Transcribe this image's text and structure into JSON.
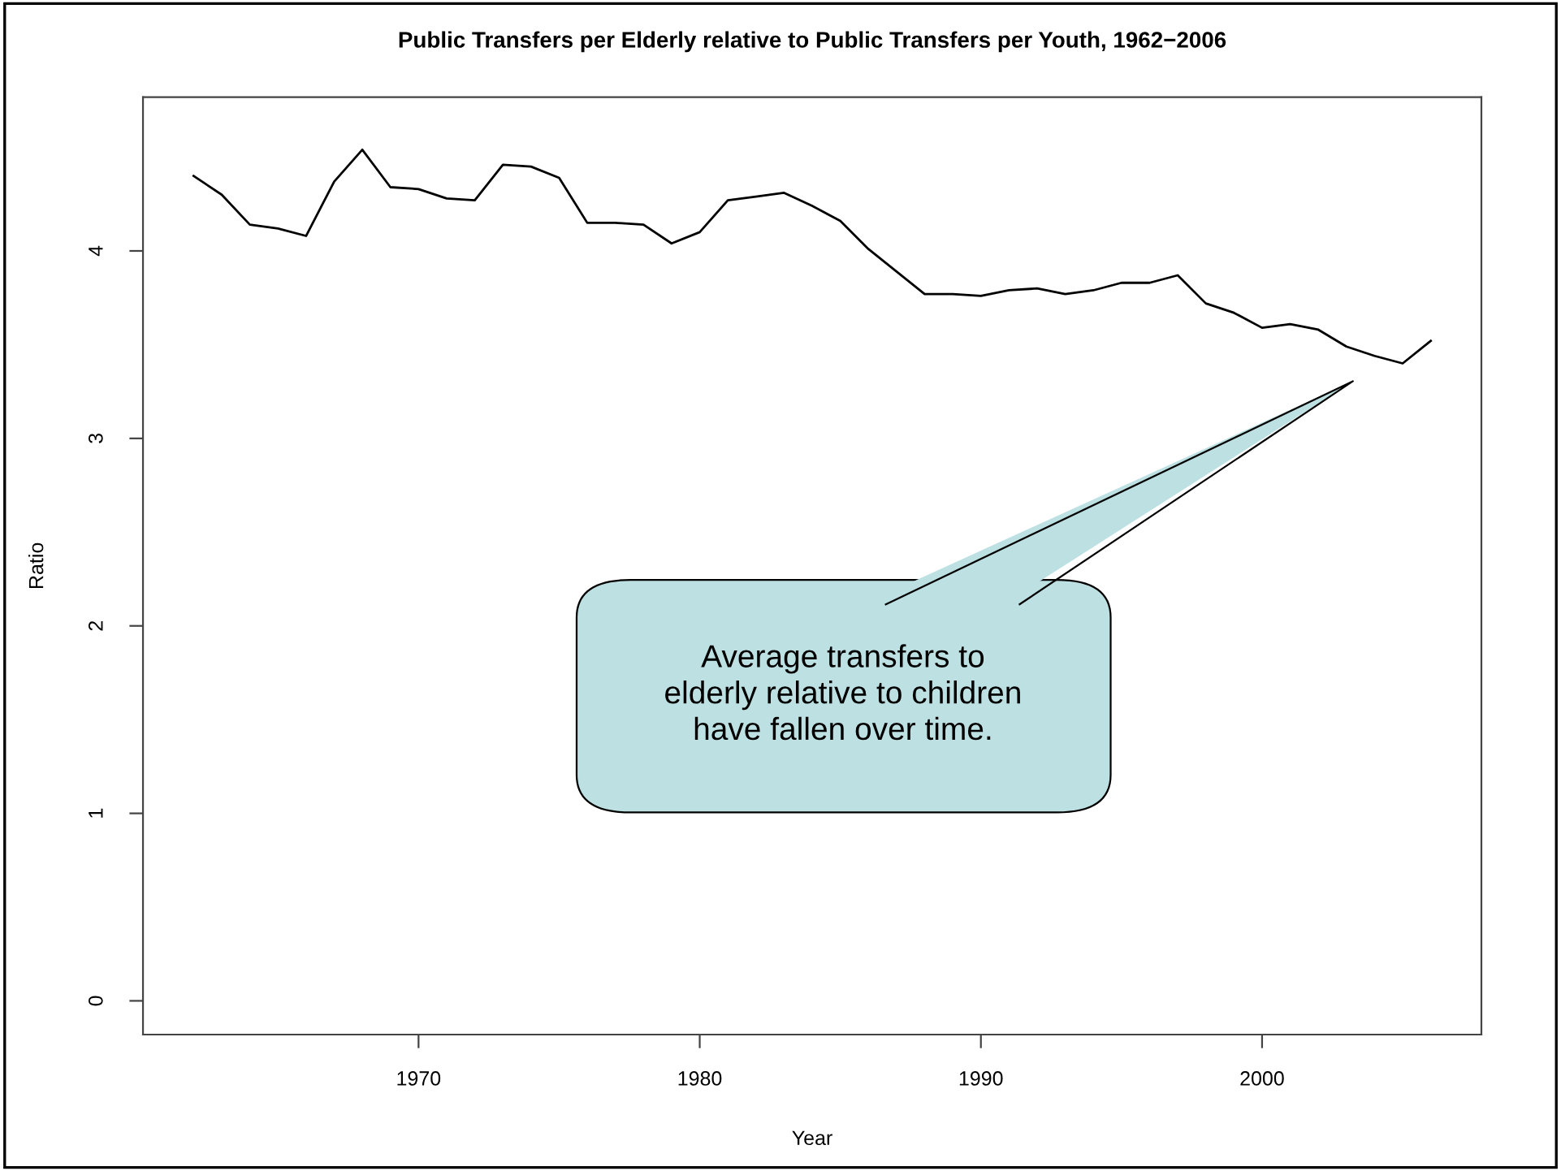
{
  "chart_data": {
    "type": "line",
    "title": "Public Transfers per Elderly relative to Public Transfers per Youth, 1962−2006",
    "xlabel": "Year",
    "ylabel": "Ratio",
    "x": [
      1962,
      1963,
      1964,
      1965,
      1966,
      1967,
      1968,
      1969,
      1970,
      1971,
      1972,
      1973,
      1974,
      1975,
      1976,
      1977,
      1978,
      1979,
      1980,
      1981,
      1982,
      1983,
      1984,
      1985,
      1986,
      1987,
      1988,
      1989,
      1990,
      1991,
      1992,
      1993,
      1994,
      1995,
      1996,
      1997,
      1998,
      1999,
      2000,
      2001,
      2002,
      2003,
      2004,
      2005,
      2006
    ],
    "series": [
      {
        "color": "#000000",
        "values": [
          4.4,
          4.3,
          4.14,
          4.12,
          4.08,
          4.37,
          4.54,
          4.34,
          4.33,
          4.28,
          4.27,
          4.46,
          4.45,
          4.39,
          4.15,
          4.15,
          4.14,
          4.04,
          4.1,
          4.27,
          4.29,
          4.31,
          4.24,
          4.16,
          4.01,
          3.89,
          3.77,
          3.77,
          3.76,
          3.79,
          3.8,
          3.77,
          3.79,
          3.83,
          3.83,
          3.87,
          3.72,
          3.67,
          3.59,
          3.61,
          3.58,
          3.49,
          3.44,
          3.4,
          3.52
        ]
      }
    ],
    "xlim": [
      1960.2,
      2007.8
    ],
    "ylim": [
      -0.18,
      4.82
    ],
    "xticks": [
      1970,
      1980,
      1990,
      2000
    ],
    "yticks": [
      0,
      1,
      2,
      3,
      4
    ],
    "annotations": [
      "Average transfers to\nelderly relative to children\nhave fallen over time."
    ],
    "grid": false,
    "legend": false,
    "line_style": "solid",
    "marker": "none"
  }
}
